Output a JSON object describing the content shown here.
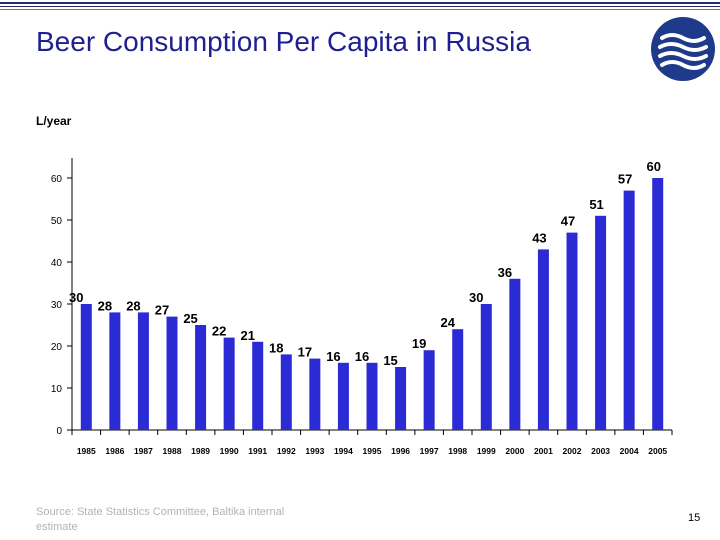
{
  "slide": {
    "title": "Beer Consumption Per Capita in Russia",
    "unit_label": "L/year",
    "source": "Source: State Statistics Committee, Baltika internal estimate",
    "page_number": "15"
  },
  "colors": {
    "title": "#1f1f8f",
    "bar": "#2b2bd6",
    "stripe_dark": "#2a2a6e",
    "logo_bg": "#1f3a8a",
    "source_text": "#b3b3b3"
  },
  "logo": {
    "icon": "waves-logo-icon"
  },
  "chart_data": {
    "type": "bar",
    "categories": [
      "1985",
      "1986",
      "1987",
      "1988",
      "1989",
      "1990",
      "1991",
      "1992",
      "1993",
      "1994",
      "1995",
      "1996",
      "1997",
      "1998",
      "1999",
      "2000",
      "2001",
      "2002",
      "2003",
      "2004",
      "2005"
    ],
    "values": [
      30,
      28,
      28,
      27,
      25,
      22,
      21,
      18,
      17,
      16,
      16,
      15,
      19,
      24,
      30,
      36,
      43,
      47,
      51,
      57,
      60
    ],
    "ylim": [
      0,
      60
    ],
    "yticks": [
      0,
      10,
      20,
      30,
      40,
      50,
      60
    ],
    "ylabel": "L/year",
    "xlabel": "",
    "grid": false,
    "legend": "none",
    "data_labels": true
  }
}
